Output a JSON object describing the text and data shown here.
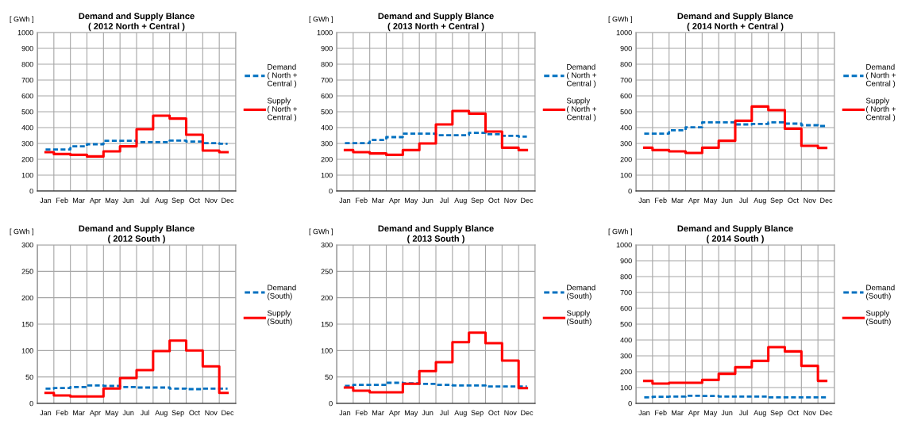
{
  "chart_data": [
    {
      "type": "step",
      "title": "Demand and Supply Blance\n( 2012 North + Central )",
      "ylabel": "[ GWh ]",
      "categories": [
        "Jan",
        "Feb",
        "Mar",
        "Apr",
        "May",
        "Jun",
        "Jul",
        "Aug",
        "Sep",
        "Oct",
        "Nov",
        "Dec"
      ],
      "ylim": [
        0,
        1000
      ],
      "yticks": [
        0,
        100,
        200,
        300,
        400,
        500,
        600,
        700,
        800,
        900,
        1000
      ],
      "grid": true,
      "legend": "right",
      "series": [
        {
          "name": "Demand\n( North +\nCentral )",
          "color": "#0070c0",
          "line_style": "dashed",
          "values": [
            262,
            262,
            282,
            295,
            317,
            317,
            308,
            308,
            318,
            312,
            302,
            298
          ]
        },
        {
          "name": "Supply\n( North +\nCentral )",
          "color": "#ff0000",
          "line_style": "solid",
          "values": [
            245,
            233,
            228,
            218,
            250,
            282,
            390,
            475,
            457,
            355,
            255,
            245
          ]
        }
      ]
    },
    {
      "type": "step",
      "title": "Demand and Supply Blance\n( 2013 North + Central )",
      "ylabel": "[ GWh ]",
      "categories": [
        "Jan",
        "Feb",
        "Mar",
        "Apr",
        "May",
        "Jun",
        "Jul",
        "Aug",
        "Sep",
        "Oct",
        "Nov",
        "Dec"
      ],
      "ylim": [
        0,
        1000
      ],
      "yticks": [
        0,
        100,
        200,
        300,
        400,
        500,
        600,
        700,
        800,
        900,
        1000
      ],
      "grid": true,
      "legend": "right",
      "series": [
        {
          "name": "Demand\n( North +\nCentral )",
          "color": "#0070c0",
          "line_style": "dashed",
          "values": [
            302,
            302,
            322,
            340,
            362,
            362,
            352,
            352,
            367,
            358,
            348,
            343
          ]
        },
        {
          "name": "Supply\n( North +\nCentral )",
          "color": "#ff0000",
          "line_style": "solid",
          "values": [
            258,
            245,
            237,
            228,
            258,
            300,
            420,
            505,
            488,
            375,
            273,
            258
          ]
        }
      ]
    },
    {
      "type": "step",
      "title": "Demand and Supply Blance\n( 2014 North + Central )",
      "ylabel": "[ GWh ]",
      "categories": [
        "Jan",
        "Feb",
        "Mar",
        "Apr",
        "May",
        "Jun",
        "Jul",
        "Aug",
        "Sep",
        "Oct",
        "Nov",
        "Dec"
      ],
      "ylim": [
        0,
        1000
      ],
      "yticks": [
        0,
        100,
        200,
        300,
        400,
        500,
        600,
        700,
        800,
        900,
        1000
      ],
      "grid": true,
      "legend": "right",
      "series": [
        {
          "name": "Demand\n( North +\nCentral )",
          "color": "#0070c0",
          "line_style": "dashed",
          "values": [
            362,
            362,
            383,
            402,
            433,
            433,
            420,
            423,
            433,
            425,
            415,
            410
          ]
        },
        {
          "name": "Supply\n( North +\nCentral )",
          "color": "#ff0000",
          "line_style": "solid",
          "values": [
            273,
            258,
            250,
            240,
            273,
            317,
            443,
            533,
            510,
            393,
            285,
            272
          ]
        }
      ]
    },
    {
      "type": "step",
      "title": "Demand and Supply Blance\n( 2012 South )",
      "ylabel": "[ GWh ]",
      "categories": [
        "Jan",
        "Feb",
        "Mar",
        "Apr",
        "May",
        "Jun",
        "Jul",
        "Aug",
        "Sep",
        "Oct",
        "Nov",
        "Dec"
      ],
      "ylim": [
        0,
        300
      ],
      "yticks": [
        0,
        50,
        100,
        150,
        200,
        250,
        300
      ],
      "grid": true,
      "legend": "right",
      "series": [
        {
          "name": "Demand\n(South)",
          "color": "#0070c0",
          "line_style": "dashed",
          "values": [
            28,
            29,
            31,
            34,
            33,
            31,
            30,
            30,
            28,
            27,
            28,
            28
          ]
        },
        {
          "name": "Supply\n(South)",
          "color": "#ff0000",
          "line_style": "solid",
          "values": [
            20,
            15,
            13,
            13,
            28,
            48,
            63,
            99,
            119,
            100,
            70,
            20
          ]
        }
      ]
    },
    {
      "type": "step",
      "title": "Demand and Supply Blance\n( 2013 South )",
      "ylabel": "[ GWh ]",
      "categories": [
        "Jan",
        "Feb",
        "Mar",
        "Apr",
        "May",
        "Jun",
        "Jul",
        "Aug",
        "Sep",
        "Oct",
        "Nov",
        "Dec"
      ],
      "ylim": [
        0,
        300
      ],
      "yticks": [
        0,
        50,
        100,
        150,
        200,
        250,
        300
      ],
      "grid": true,
      "legend": "right",
      "series": [
        {
          "name": "Demand\n(South)",
          "color": "#0070c0",
          "line_style": "dashed",
          "values": [
            33,
            35,
            35,
            39,
            38,
            37,
            35,
            34,
            34,
            32,
            32,
            32
          ]
        },
        {
          "name": "Supply\n(South)",
          "color": "#ff0000",
          "line_style": "solid",
          "values": [
            30,
            24,
            21,
            21,
            37,
            61,
            78,
            116,
            134,
            114,
            81,
            29
          ]
        }
      ]
    },
    {
      "type": "step",
      "title": "Demand and Supply Blance\n( 2014 South )",
      "ylabel": "[ GWh ]",
      "categories": [
        "Jan",
        "Feb",
        "Mar",
        "Apr",
        "May",
        "Jun",
        "Jul",
        "Aug",
        "Sep",
        "Oct",
        "Nov",
        "Dec"
      ],
      "ylim": [
        0,
        1000
      ],
      "yticks": [
        0,
        100,
        200,
        300,
        400,
        500,
        600,
        700,
        800,
        900,
        1000
      ],
      "grid": true,
      "legend": "right",
      "series": [
        {
          "name": "Demand\n(South)",
          "color": "#0070c0",
          "line_style": "dashed",
          "values": [
            38,
            42,
            43,
            48,
            47,
            43,
            43,
            43,
            38,
            38,
            38,
            38
          ]
        },
        {
          "name": "Supply\n(South)",
          "color": "#ff0000",
          "line_style": "solid",
          "values": [
            142,
            125,
            130,
            130,
            148,
            187,
            228,
            268,
            355,
            328,
            237,
            142
          ]
        }
      ]
    }
  ]
}
